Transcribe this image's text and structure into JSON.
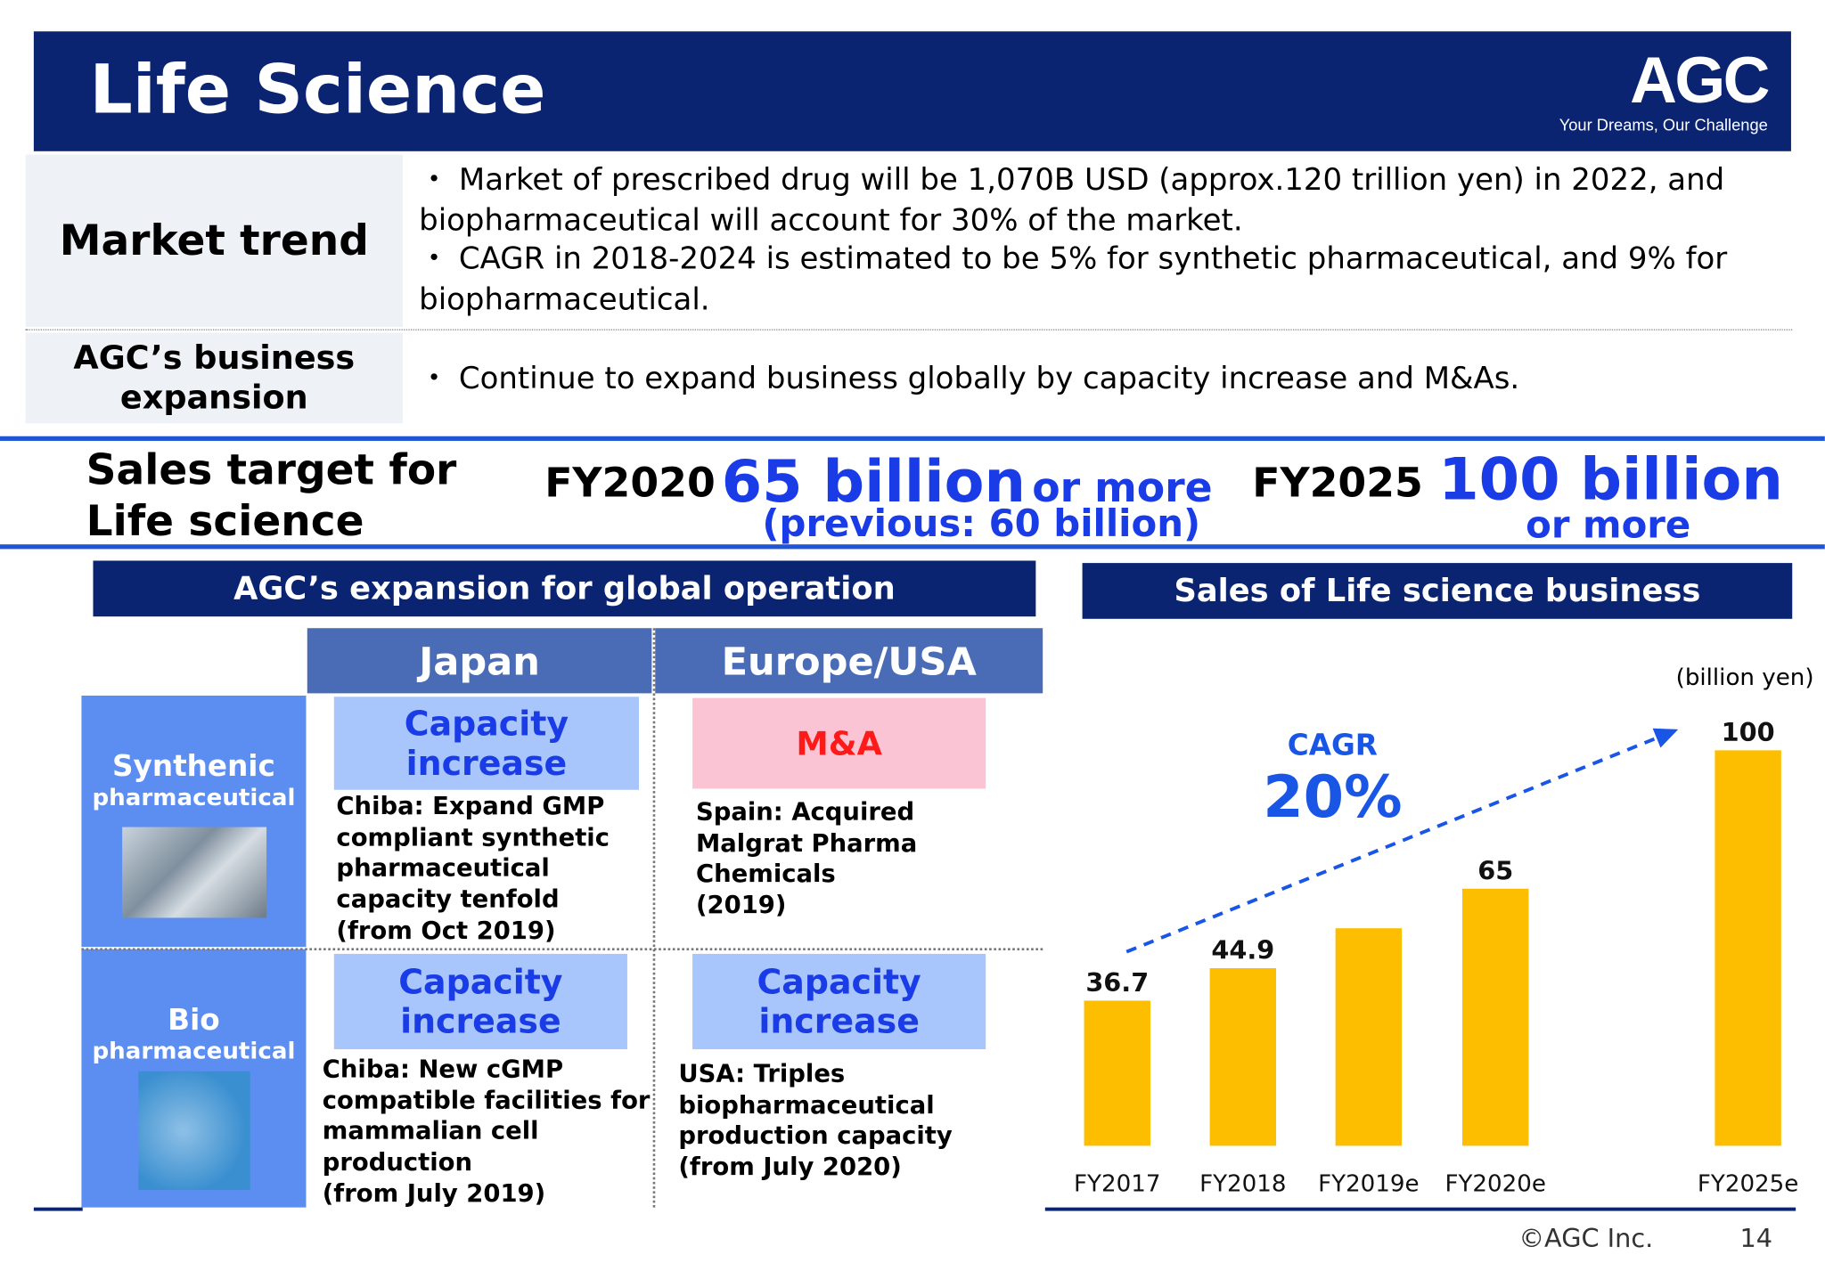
{
  "header": {
    "title": "Life Science",
    "logo_text": "AGC",
    "tagline": "Your Dreams, Our Challenge"
  },
  "market_trend": {
    "label": "Market trend",
    "bullet1": "・ Market of prescribed drug will be 1,070B USD (approx.120 trillion yen) in 2022, and biopharmaceutical will account for 30% of the market.",
    "bullet2": "・ CAGR in 2018-2024 is estimated to be 5% for synthetic pharmaceutical, and 9% for biopharmaceutical."
  },
  "expansion": {
    "label_line1": "AGC’s business",
    "label_line2": "expansion",
    "bullet": "・ Continue to expand business globally by capacity increase and M&As."
  },
  "sales_target": {
    "label_line1": "Sales target for",
    "label_line2": "Life science",
    "fy2020": "FY2020",
    "fy2020_value": "65 billion",
    "fy2020_suffix": "or more",
    "fy2020_note": "(previous: 60 billion)",
    "fy2025": "FY2025",
    "fy2025_value": "100 billion",
    "fy2025_suffix": "or more"
  },
  "global_panel": {
    "title": "AGC’s expansion for global operation",
    "col_japan": "Japan",
    "col_eu_usa": "Europe/USA",
    "row_synthetic_line1": "Synthenic",
    "row_synthetic_line2": "pharmaceutical",
    "row_bio_line1": "Bio",
    "row_bio_line2": "pharmaceutical",
    "japan_synth_box": "Capacity increase",
    "japan_synth_desc": "Chiba: Expand GMP\ncompliant synthetic\npharmaceutical\ncapacity tenfold\n  (from Oct 2019)",
    "eu_synth_box": "M&A",
    "eu_synth_desc": "Spain: Acquired\nMalgrat Pharma\nChemicals\n  (2019)",
    "japan_bio_box": "Capacity increase",
    "japan_bio_desc": "Chiba: New cGMP\ncompatible facilities for\nmammalian cell\nproduction\n  (from July 2019)",
    "eu_bio_box": "Capacity increase",
    "eu_bio_desc": "USA: Triples\nbiopharmaceutical\nproduction capacity\n  (from July 2020)"
  },
  "sales_panel": {
    "title": "Sales of Life science business",
    "unit": "(billion yen)",
    "cagr_label": "CAGR",
    "cagr_value": "20%"
  },
  "chart_data": {
    "type": "bar",
    "title": "Sales of Life science business",
    "ylabel": "(billion yen)",
    "categories": [
      "FY2017",
      "FY2018",
      "FY2019e",
      "FY2020e",
      "FY2025e"
    ],
    "values": [
      36.7,
      44.9,
      55,
      65,
      100
    ],
    "data_labels": [
      "36.7",
      "44.9",
      "",
      "65",
      "100"
    ],
    "ylim": [
      0,
      100
    ],
    "colors": {
      "bar": "#fdbe00",
      "trend": "#1a56e6"
    },
    "annotation": {
      "text": "CAGR 20%"
    },
    "grid": false,
    "legend": "none"
  },
  "footer": {
    "copyright": "©AGC Inc.",
    "page_number": "14"
  },
  "colors": {
    "navy": "#0a2472",
    "accent_blue": "#1a3ce6",
    "bar": "#fdbe00"
  }
}
